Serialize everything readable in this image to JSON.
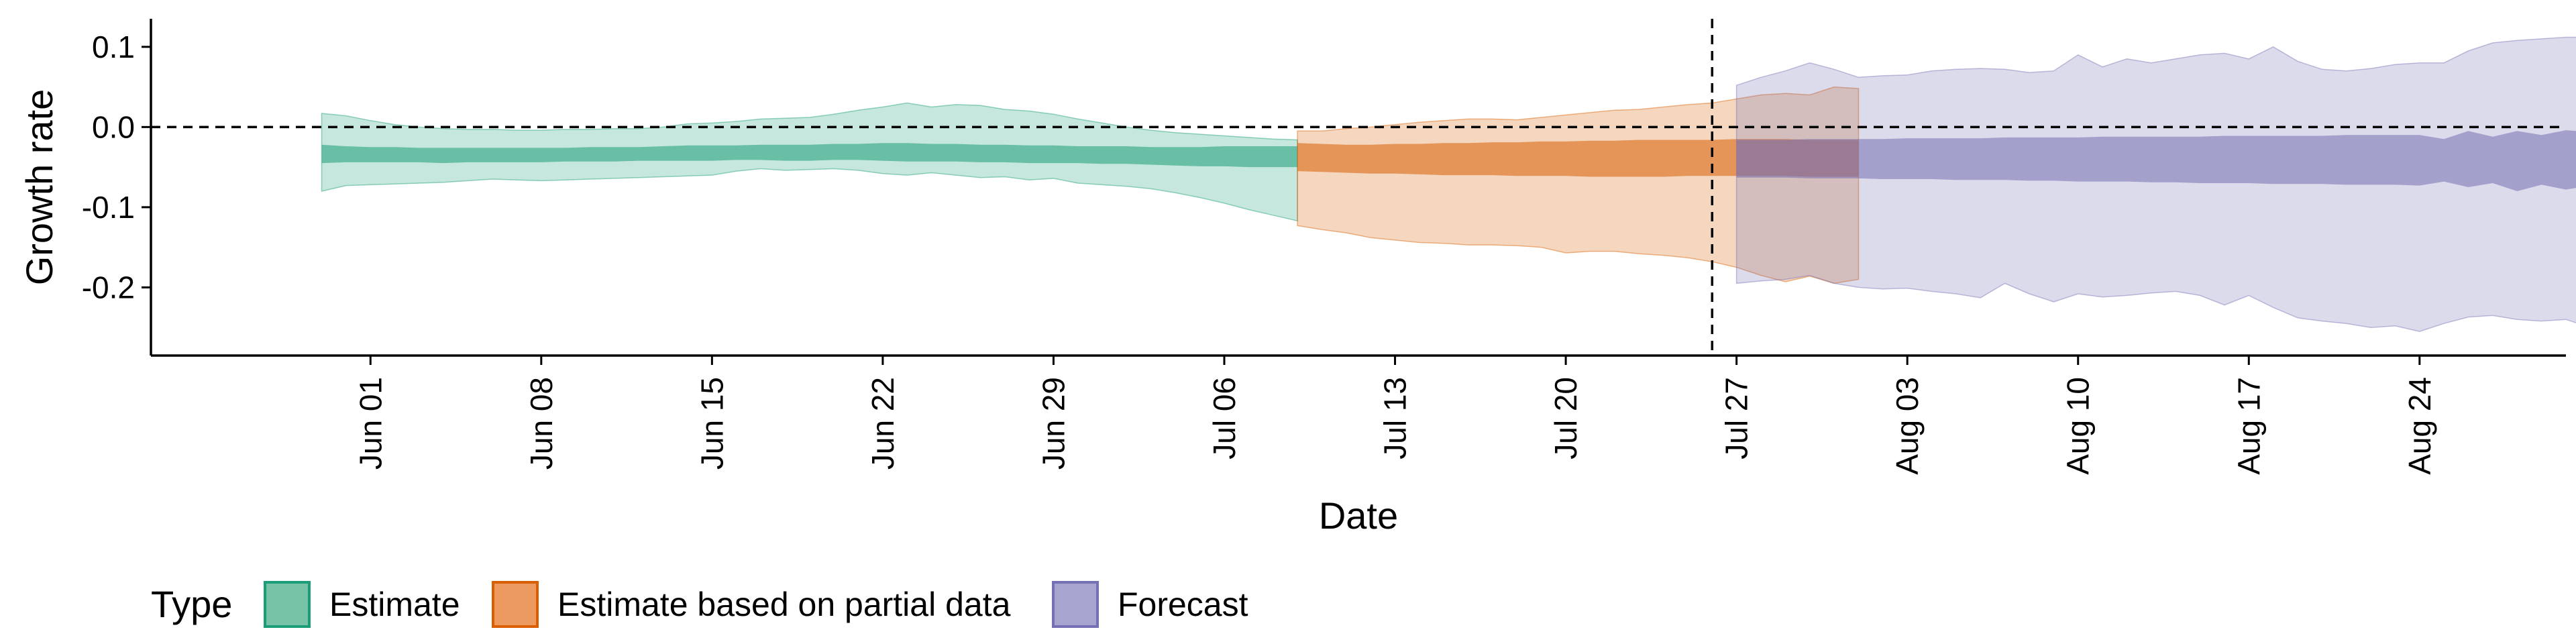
{
  "chart_data": {
    "type": "area",
    "xlabel": "Date",
    "ylabel": "Growth rate",
    "x_range": [
      "2020-05-23",
      "2020-08-30"
    ],
    "ylim": [
      -0.285,
      0.135
    ],
    "y_ticks": [
      0.1,
      0.0,
      -0.1,
      -0.2
    ],
    "y_tick_labels": [
      "0.1",
      "0.0",
      "-0.1",
      "-0.2"
    ],
    "x_ticks": [
      "2020-06-01",
      "2020-06-08",
      "2020-06-15",
      "2020-06-22",
      "2020-06-29",
      "2020-07-06",
      "2020-07-13",
      "2020-07-20",
      "2020-07-27",
      "2020-08-03",
      "2020-08-10",
      "2020-08-17",
      "2020-08-24"
    ],
    "x_tick_labels": [
      "Jun 01",
      "Jun 08",
      "Jun 15",
      "Jun 22",
      "Jun 29",
      "Jul 06",
      "Jul 13",
      "Jul 20",
      "Jul 27",
      "Aug 03",
      "Aug 10",
      "Aug 17",
      "Aug 24"
    ],
    "hline_y": 0.0,
    "vline_x": "2020-07-26",
    "grid": false,
    "legend": {
      "title": "Type",
      "placement": "bottom-left",
      "entries": [
        {
          "label": "Estimate",
          "fill": "#76c3a8",
          "stroke": "#1b9e77"
        },
        {
          "label": "Estimate based on partial data",
          "fill": "#ec9a5f",
          "stroke": "#d95f02"
        },
        {
          "label": "Forecast",
          "fill": "#a7a5cf",
          "stroke": "#7570b3"
        }
      ]
    },
    "series": [
      {
        "name": "Estimate",
        "fill_color": "#1b9e77",
        "x_start": "2020-05-30",
        "outer_lower": [
          -0.08,
          -0.073,
          -0.072,
          -0.071,
          -0.07,
          -0.069,
          -0.067,
          -0.065,
          -0.066,
          -0.067,
          -0.066,
          -0.065,
          -0.064,
          -0.063,
          -0.062,
          -0.061,
          -0.06,
          -0.055,
          -0.052,
          -0.054,
          -0.053,
          -0.052,
          -0.054,
          -0.058,
          -0.06,
          -0.057,
          -0.06,
          -0.063,
          -0.062,
          -0.066,
          -0.064,
          -0.07,
          -0.072,
          -0.074,
          -0.077,
          -0.082,
          -0.088,
          -0.095,
          -0.103,
          -0.11,
          -0.117
        ],
        "outer_upper": [
          0.017,
          0.014,
          0.008,
          0.003,
          0.0,
          -0.002,
          -0.003,
          -0.003,
          -0.004,
          -0.004,
          -0.003,
          -0.003,
          -0.002,
          -0.002,
          0.0,
          0.004,
          0.005,
          0.007,
          0.01,
          0.011,
          0.012,
          0.016,
          0.021,
          0.025,
          0.03,
          0.025,
          0.028,
          0.027,
          0.022,
          0.02,
          0.016,
          0.01,
          0.005,
          0.0,
          -0.004,
          -0.007,
          -0.009,
          -0.011,
          -0.013,
          -0.015,
          -0.016
        ],
        "inner_lower": [
          -0.045,
          -0.044,
          -0.044,
          -0.044,
          -0.044,
          -0.045,
          -0.044,
          -0.044,
          -0.044,
          -0.044,
          -0.043,
          -0.043,
          -0.043,
          -0.042,
          -0.042,
          -0.042,
          -0.042,
          -0.041,
          -0.041,
          -0.042,
          -0.042,
          -0.041,
          -0.041,
          -0.042,
          -0.043,
          -0.043,
          -0.043,
          -0.044,
          -0.044,
          -0.045,
          -0.045,
          -0.045,
          -0.046,
          -0.046,
          -0.047,
          -0.048,
          -0.049,
          -0.049,
          -0.05,
          -0.05,
          -0.05
        ],
        "inner_upper": [
          -0.022,
          -0.024,
          -0.025,
          -0.025,
          -0.026,
          -0.026,
          -0.026,
          -0.026,
          -0.026,
          -0.026,
          -0.026,
          -0.025,
          -0.025,
          -0.025,
          -0.024,
          -0.023,
          -0.023,
          -0.023,
          -0.022,
          -0.022,
          -0.022,
          -0.021,
          -0.021,
          -0.02,
          -0.02,
          -0.021,
          -0.021,
          -0.022,
          -0.022,
          -0.023,
          -0.023,
          -0.024,
          -0.024,
          -0.024,
          -0.025,
          -0.025,
          -0.025,
          -0.024,
          -0.024,
          -0.024,
          -0.024
        ]
      },
      {
        "name": "Estimate based on partial data",
        "fill_color": "#d95f02",
        "x_start": "2020-07-09",
        "outer_lower": [
          -0.123,
          -0.128,
          -0.132,
          -0.138,
          -0.141,
          -0.144,
          -0.145,
          -0.147,
          -0.147,
          -0.148,
          -0.15,
          -0.157,
          -0.155,
          -0.155,
          -0.158,
          -0.16,
          -0.163,
          -0.168,
          -0.175,
          -0.185,
          -0.193,
          -0.186,
          -0.195,
          -0.19
        ],
        "outer_upper": [
          -0.005,
          -0.005,
          -0.002,
          0.0,
          0.003,
          0.006,
          0.008,
          0.01,
          0.01,
          0.009,
          0.012,
          0.015,
          0.018,
          0.021,
          0.022,
          0.025,
          0.028,
          0.03,
          0.035,
          0.04,
          0.042,
          0.04,
          0.05,
          0.048
        ],
        "inner_lower": [
          -0.055,
          -0.056,
          -0.057,
          -0.058,
          -0.058,
          -0.059,
          -0.06,
          -0.06,
          -0.06,
          -0.061,
          -0.061,
          -0.061,
          -0.062,
          -0.062,
          -0.062,
          -0.062,
          -0.061,
          -0.061,
          -0.061,
          -0.061,
          -0.061,
          -0.062,
          -0.062,
          -0.062
        ],
        "inner_upper": [
          -0.02,
          -0.021,
          -0.022,
          -0.022,
          -0.021,
          -0.021,
          -0.02,
          -0.02,
          -0.019,
          -0.019,
          -0.018,
          -0.018,
          -0.017,
          -0.017,
          -0.016,
          -0.016,
          -0.016,
          -0.016,
          -0.015,
          -0.015,
          -0.015,
          -0.016,
          -0.016,
          -0.016
        ]
      },
      {
        "name": "Forecast",
        "fill_color": "#7570b3",
        "x_start": "2020-07-27",
        "outer_lower": [
          -0.195,
          -0.192,
          -0.19,
          -0.185,
          -0.195,
          -0.2,
          -0.202,
          -0.201,
          -0.205,
          -0.208,
          -0.213,
          -0.195,
          -0.208,
          -0.218,
          -0.208,
          -0.212,
          -0.21,
          -0.207,
          -0.205,
          -0.21,
          -0.222,
          -0.21,
          -0.225,
          -0.238,
          -0.242,
          -0.245,
          -0.25,
          -0.248,
          -0.255,
          -0.245,
          -0.237,
          -0.235,
          -0.24,
          -0.242,
          -0.24,
          -0.25,
          -0.255,
          -0.27
        ],
        "outer_upper": [
          0.052,
          0.062,
          0.07,
          0.08,
          0.072,
          0.062,
          0.064,
          0.065,
          0.07,
          0.072,
          0.073,
          0.072,
          0.068,
          0.07,
          0.09,
          0.075,
          0.085,
          0.08,
          0.085,
          0.09,
          0.092,
          0.085,
          0.1,
          0.082,
          0.072,
          0.07,
          0.073,
          0.078,
          0.08,
          0.08,
          0.095,
          0.105,
          0.108,
          0.11,
          0.112,
          0.112,
          0.115,
          0.1
        ],
        "inner_lower": [
          -0.063,
          -0.063,
          -0.063,
          -0.064,
          -0.064,
          -0.064,
          -0.065,
          -0.065,
          -0.065,
          -0.066,
          -0.066,
          -0.066,
          -0.067,
          -0.067,
          -0.068,
          -0.068,
          -0.068,
          -0.069,
          -0.069,
          -0.07,
          -0.07,
          -0.07,
          -0.071,
          -0.071,
          -0.071,
          -0.072,
          -0.072,
          -0.072,
          -0.073,
          -0.068,
          -0.075,
          -0.07,
          -0.08,
          -0.072,
          -0.078,
          -0.073,
          -0.073,
          -0.072
        ],
        "inner_upper": [
          -0.016,
          -0.016,
          -0.016,
          -0.015,
          -0.015,
          -0.015,
          -0.015,
          -0.014,
          -0.014,
          -0.014,
          -0.014,
          -0.013,
          -0.013,
          -0.013,
          -0.013,
          -0.012,
          -0.012,
          -0.012,
          -0.012,
          -0.012,
          -0.011,
          -0.011,
          -0.011,
          -0.011,
          -0.011,
          -0.01,
          -0.01,
          -0.01,
          -0.01,
          -0.015,
          -0.005,
          -0.012,
          -0.005,
          -0.01,
          -0.004,
          -0.006,
          -0.004,
          -0.004
        ]
      }
    ]
  }
}
